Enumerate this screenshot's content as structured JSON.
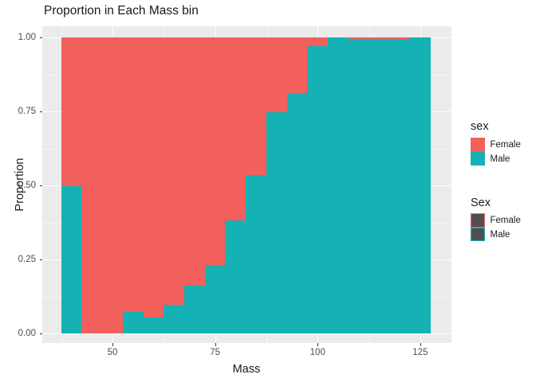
{
  "chart_data": {
    "type": "bar",
    "subtype": "stacked-proportion-histogram",
    "title": "Proportion in Each Mass bin",
    "xlabel": "Mass",
    "ylabel": "Proportion",
    "x_ticks": [
      50,
      75,
      100,
      125
    ],
    "x_tick_labels": [
      "50",
      "75",
      "100",
      "125"
    ],
    "x_minor_ticks": [
      37.5,
      62.5,
      87.5,
      112.5
    ],
    "y_ticks": [
      0,
      0.25,
      0.5,
      0.75,
      1
    ],
    "y_tick_labels": [
      "0.00",
      "0.25",
      "0.50",
      "0.75",
      "1.00"
    ],
    "y_minor_ticks": [
      0.125,
      0.375,
      0.625,
      0.875
    ],
    "xlim": [
      33,
      132.5
    ],
    "ylim": [
      0,
      1
    ],
    "bin_width": 5,
    "grid": true,
    "legend_position": "right",
    "series_names": [
      "Female",
      "Male"
    ],
    "bins": [
      {
        "x": 40,
        "male": 0.497,
        "female": 0.503
      },
      {
        "x": 45,
        "male": 0,
        "female": 1
      },
      {
        "x": 50,
        "male": 0,
        "female": 1
      },
      {
        "x": 55,
        "male": 0.073,
        "female": 0.927
      },
      {
        "x": 60,
        "male": 0.054,
        "female": 0.946
      },
      {
        "x": 65,
        "male": 0.096,
        "female": 0.904
      },
      {
        "x": 70,
        "male": 0.161,
        "female": 0.839
      },
      {
        "x": 75,
        "male": 0.23,
        "female": 0.77
      },
      {
        "x": 80,
        "male": 0.382,
        "female": 0.618
      },
      {
        "x": 85,
        "male": 0.535,
        "female": 0.465
      },
      {
        "x": 90,
        "male": 0.747,
        "female": 0.253
      },
      {
        "x": 95,
        "male": 0.813,
        "female": 0.187
      },
      {
        "x": 100,
        "male": 0.97,
        "female": 0.03
      },
      {
        "x": 105,
        "male": 1,
        "female": 0
      },
      {
        "x": 110,
        "male": 1,
        "female": 0,
        "female_outline": true
      },
      {
        "x": 115,
        "male": 1,
        "female": 0,
        "female_outline": true
      },
      {
        "x": 120,
        "male": 1,
        "female": 0,
        "female_outline": true
      },
      {
        "x": 125,
        "male": 1,
        "female": 0
      }
    ]
  },
  "legends": {
    "fill": {
      "title": "sex",
      "entries": [
        {
          "label": "Female",
          "color": "#F2605B"
        },
        {
          "label": "Male",
          "color": "#14B2B5"
        }
      ]
    },
    "colour": {
      "title": "Sex",
      "entries": [
        {
          "label": "Female",
          "border": "#F2605B",
          "fill": "#4F4F4F"
        },
        {
          "label": "Male",
          "border": "#14B2B5",
          "fill": "#4F4F4F"
        }
      ]
    }
  },
  "colors": {
    "female": "#F2605B",
    "male": "#14B2B5",
    "panel_bg": "#EBEBEB",
    "grid": "#FFFFFF",
    "axis_text": "#4D4D4D",
    "text": "#1A1A1A",
    "tick": "#333333",
    "legend_key_dark": "#4F4F4F"
  }
}
